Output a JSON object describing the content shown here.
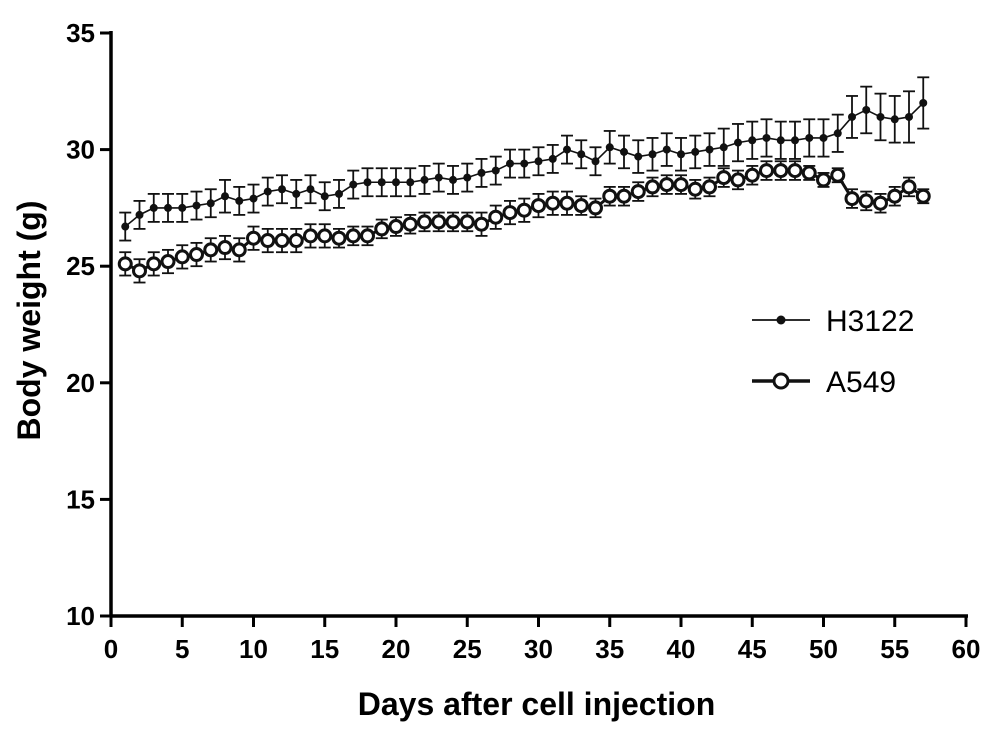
{
  "chart_data": {
    "type": "line",
    "title": "",
    "xlabel": "Days after cell injection",
    "ylabel": "Body weight (g)",
    "xlim": [
      0,
      60
    ],
    "ylim": [
      10,
      35
    ],
    "xticks": [
      0,
      5,
      10,
      15,
      20,
      25,
      30,
      35,
      40,
      45,
      50,
      55,
      60
    ],
    "yticks": [
      10,
      15,
      20,
      25,
      30,
      35
    ],
    "grid": false,
    "legend_position": "right",
    "x": [
      1,
      2,
      3,
      4,
      5,
      6,
      7,
      8,
      9,
      10,
      11,
      12,
      13,
      14,
      15,
      16,
      17,
      18,
      19,
      20,
      21,
      22,
      23,
      24,
      25,
      26,
      27,
      28,
      29,
      30,
      31,
      32,
      33,
      34,
      35,
      36,
      37,
      38,
      39,
      40,
      41,
      42,
      43,
      44,
      45,
      46,
      47,
      48,
      49,
      50,
      51,
      52,
      53,
      54,
      55,
      56,
      57
    ],
    "series": [
      {
        "name": "H3122",
        "marker": "filled-dot",
        "color": "#111111",
        "values": [
          26.7,
          27.2,
          27.5,
          27.5,
          27.5,
          27.6,
          27.7,
          28.0,
          27.8,
          27.9,
          28.2,
          28.3,
          28.1,
          28.3,
          28.0,
          28.1,
          28.5,
          28.6,
          28.6,
          28.6,
          28.6,
          28.7,
          28.8,
          28.7,
          28.8,
          29.0,
          29.1,
          29.4,
          29.4,
          29.5,
          29.6,
          30.0,
          29.8,
          29.5,
          30.1,
          29.9,
          29.7,
          29.8,
          30.0,
          29.8,
          29.9,
          30.0,
          30.1,
          30.3,
          30.4,
          30.5,
          30.4,
          30.4,
          30.5,
          30.5,
          30.7,
          31.4,
          31.7,
          31.4,
          31.3,
          31.4,
          32.0
        ],
        "errors": [
          0.6,
          0.6,
          0.6,
          0.6,
          0.6,
          0.6,
          0.6,
          0.7,
          0.6,
          0.6,
          0.6,
          0.6,
          0.6,
          0.6,
          0.6,
          0.6,
          0.6,
          0.6,
          0.6,
          0.6,
          0.6,
          0.6,
          0.6,
          0.6,
          0.6,
          0.6,
          0.6,
          0.6,
          0.6,
          0.6,
          0.6,
          0.6,
          0.6,
          0.6,
          0.7,
          0.7,
          0.7,
          0.7,
          0.7,
          0.7,
          0.7,
          0.7,
          0.8,
          0.8,
          0.8,
          0.8,
          0.8,
          0.8,
          0.8,
          0.8,
          0.8,
          0.9,
          1.0,
          1.0,
          1.0,
          1.1,
          1.1
        ]
      },
      {
        "name": "A549",
        "marker": "open-circle",
        "color": "#111111",
        "values": [
          25.1,
          24.8,
          25.1,
          25.2,
          25.4,
          25.5,
          25.7,
          25.8,
          25.7,
          26.2,
          26.1,
          26.1,
          26.1,
          26.3,
          26.3,
          26.2,
          26.3,
          26.3,
          26.6,
          26.7,
          26.8,
          26.9,
          26.9,
          26.9,
          26.9,
          26.8,
          27.1,
          27.3,
          27.4,
          27.6,
          27.7,
          27.7,
          27.6,
          27.5,
          28.0,
          28.0,
          28.2,
          28.4,
          28.5,
          28.5,
          28.3,
          28.4,
          28.8,
          28.7,
          28.9,
          29.1,
          29.1,
          29.1,
          29.0,
          28.7,
          28.9,
          27.9,
          27.8,
          27.7,
          28.0,
          28.4,
          28.0
        ],
        "errors": [
          0.5,
          0.5,
          0.5,
          0.5,
          0.5,
          0.5,
          0.5,
          0.5,
          0.5,
          0.5,
          0.5,
          0.5,
          0.5,
          0.5,
          0.5,
          0.4,
          0.4,
          0.4,
          0.4,
          0.4,
          0.4,
          0.4,
          0.4,
          0.4,
          0.4,
          0.5,
          0.5,
          0.5,
          0.5,
          0.5,
          0.5,
          0.5,
          0.4,
          0.4,
          0.4,
          0.4,
          0.4,
          0.4,
          0.4,
          0.4,
          0.4,
          0.4,
          0.4,
          0.4,
          0.4,
          0.4,
          0.4,
          0.4,
          0.3,
          0.3,
          0.3,
          0.4,
          0.4,
          0.4,
          0.4,
          0.4,
          0.3
        ]
      }
    ]
  }
}
